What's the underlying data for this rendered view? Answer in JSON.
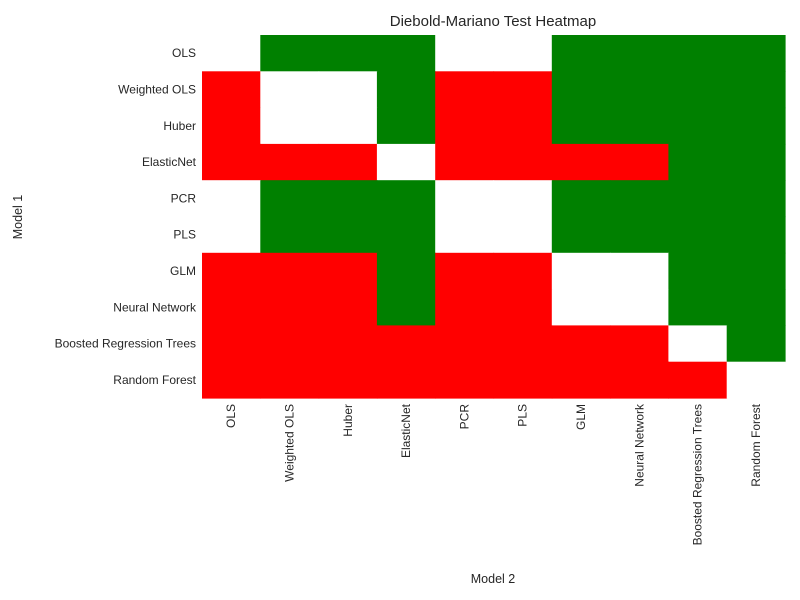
{
  "chart_data": {
    "type": "heatmap",
    "title": "Diebold-Mariano Test Heatmap",
    "xlabel": "Model 2",
    "ylabel": "Model 1",
    "x_categories": [
      "OLS",
      "Weighted OLS",
      "Huber",
      "ElasticNet",
      "PCR",
      "PLS",
      "GLM",
      "Neural Network",
      "Boosted Regression Trees",
      "Random Forest"
    ],
    "y_categories": [
      "OLS",
      "Weighted OLS",
      "Huber",
      "ElasticNet",
      "PCR",
      "PLS",
      "GLM",
      "Neural Network",
      "Boosted Regression Trees",
      "Random Forest"
    ],
    "values": [
      [
        0,
        1,
        1,
        1,
        0,
        0,
        1,
        1,
        1,
        1
      ],
      [
        -1,
        0,
        0,
        1,
        -1,
        -1,
        1,
        1,
        1,
        1
      ],
      [
        -1,
        0,
        0,
        1,
        -1,
        -1,
        1,
        1,
        1,
        1
      ],
      [
        -1,
        -1,
        -1,
        0,
        -1,
        -1,
        -1,
        -1,
        1,
        1
      ],
      [
        0,
        1,
        1,
        1,
        0,
        0,
        1,
        1,
        1,
        1
      ],
      [
        0,
        1,
        1,
        1,
        0,
        0,
        1,
        1,
        1,
        1
      ],
      [
        -1,
        -1,
        -1,
        1,
        -1,
        -1,
        0,
        0,
        1,
        1
      ],
      [
        -1,
        -1,
        -1,
        1,
        -1,
        -1,
        0,
        0,
        1,
        1
      ],
      [
        -1,
        -1,
        -1,
        -1,
        -1,
        -1,
        -1,
        -1,
        0,
        1
      ],
      [
        -1,
        -1,
        -1,
        -1,
        -1,
        -1,
        -1,
        -1,
        -1,
        0
      ]
    ],
    "colors": {
      "-1": "#ff0000",
      "0": "#ffffff",
      "1": "#008000"
    },
    "grid": false,
    "legend": "none"
  }
}
